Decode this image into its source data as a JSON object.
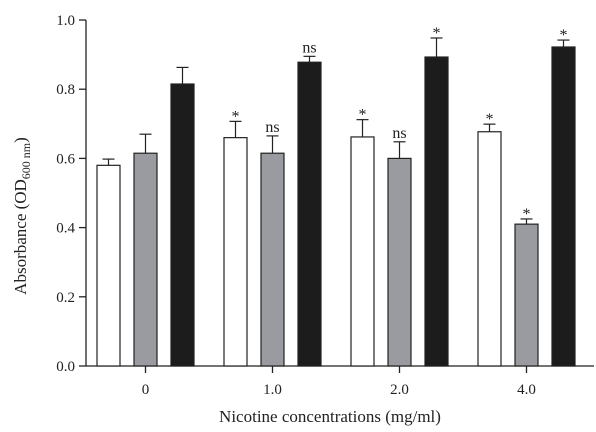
{
  "chart_data": {
    "type": "bar",
    "xlabel": "Nicotine concentrations (mg/ml)",
    "ylabel": {
      "main": "Absorbance (OD",
      "sub": "600 nm",
      "close": ")"
    },
    "ylim": [
      0,
      1.0
    ],
    "yticks": [
      "0.0",
      "0.2",
      "0.4",
      "0.6",
      "0.8",
      "1.0"
    ],
    "categories": [
      "0",
      "1.0",
      "2.0",
      "4.0"
    ],
    "series": [
      {
        "color": "#ffffff",
        "values": [
          0.58,
          0.66,
          0.662,
          0.677
        ],
        "errors": [
          0.018,
          0.047,
          0.05,
          0.022
        ],
        "annotations": [
          "",
          "*",
          "*",
          "*"
        ]
      },
      {
        "color": "#9a9ba0",
        "values": [
          0.615,
          0.615,
          0.6,
          0.41
        ],
        "errors": [
          0.055,
          0.05,
          0.048,
          0.015
        ],
        "annotations": [
          "",
          "ns",
          "ns",
          "*"
        ]
      },
      {
        "color": "#1c1c1c",
        "values": [
          0.815,
          0.878,
          0.893,
          0.922
        ],
        "errors": [
          0.048,
          0.017,
          0.055,
          0.02
        ],
        "annotations": [
          "",
          "ns",
          "*",
          "*"
        ]
      }
    ],
    "grid": false,
    "legend": "none"
  }
}
